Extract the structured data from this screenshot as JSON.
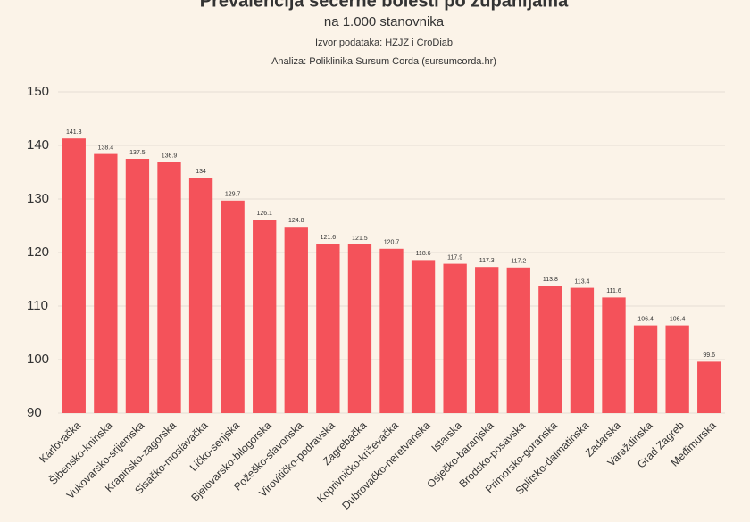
{
  "chart_data": {
    "type": "bar",
    "title": "Prevalencija šećerne bolesti po županijama",
    "subtitle": "na 1.000 stanovnika",
    "source": "Izvor podataka: HZJZ i CroDiab",
    "analysis": "Analiza: Poliklinika Sursum Corda (sursumcorda.hr)",
    "categories": [
      "Karlovačka",
      "Šibensko-kninska",
      "Vukovarsko-srijemska",
      "Krapinsko-zagorska",
      "Sisačko-moslavačka",
      "Ličko-senjska",
      "Bjelovarsko-bilogorska",
      "Požeško-slavonska",
      "Virovitičko-podravska",
      "Zagrebačka",
      "Koprivničko-križevačka",
      "Dubrovačko-neretvanska",
      "Istarska",
      "Osječko-baranjska",
      "Brodsko-posavska",
      "Primorsko-goranska",
      "Splitsko-dalmatinska",
      "Zadarska",
      "Varaždinska",
      "Grad Zagreb",
      "Međimurska"
    ],
    "values": [
      141.3,
      138.4,
      137.5,
      136.9,
      134,
      129.7,
      126.1,
      124.8,
      121.6,
      121.5,
      120.7,
      118.6,
      117.9,
      117.3,
      117.2,
      113.8,
      113.4,
      111.6,
      106.4,
      106.4,
      99.6
    ],
    "color": "#f4525a",
    "ylim": [
      90,
      150
    ],
    "yticks": [
      90,
      100,
      110,
      120,
      130,
      140,
      150
    ],
    "grid": true
  }
}
